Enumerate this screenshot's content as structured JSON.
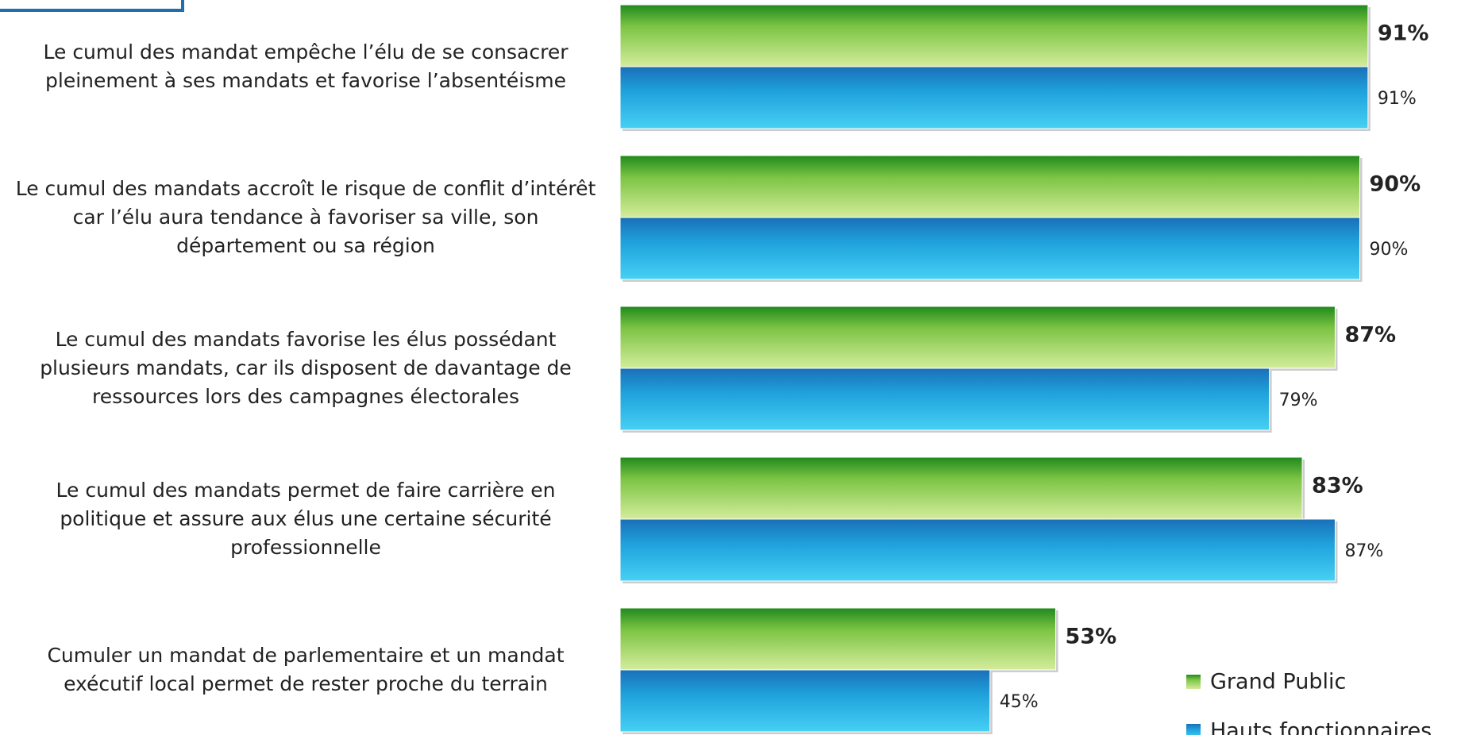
{
  "chart_data": {
    "type": "bar",
    "orientation": "horizontal",
    "categories": [
      "Le cumul des mandat empêche l’élu de se consacrer pleinement à ses mandats et favorise l’absentéisme",
      "Le cumul des mandats accroît le risque de conflit d’intérêt car l’élu aura tendance à favoriser sa ville, son département ou sa région",
      "Le cumul des mandats favorise les élus possédant plusieurs mandats, car ils disposent de davantage de ressources lors des campagnes électorales",
      "Le cumul des mandats permet de faire carrière en politique et assure aux élus une certaine sécurité professionnelle",
      "Cumuler un mandat de parlementaire et un mandat exécutif local permet de rester proche du terrain"
    ],
    "series": [
      {
        "name": "Grand Public",
        "color": "#5cb82e",
        "values": [
          91,
          90,
          87,
          83,
          53
        ],
        "value_labels": [
          "91%",
          "90%",
          "87%",
          "83%",
          "53%"
        ]
      },
      {
        "name": "Hauts fonctionnaires",
        "color": "#1a9ad6",
        "values": [
          91,
          90,
          79,
          87,
          45
        ],
        "value_labels": [
          "91%",
          "90%",
          "79%",
          "87%",
          "45%"
        ]
      }
    ],
    "legend": "bottom-right"
  }
}
